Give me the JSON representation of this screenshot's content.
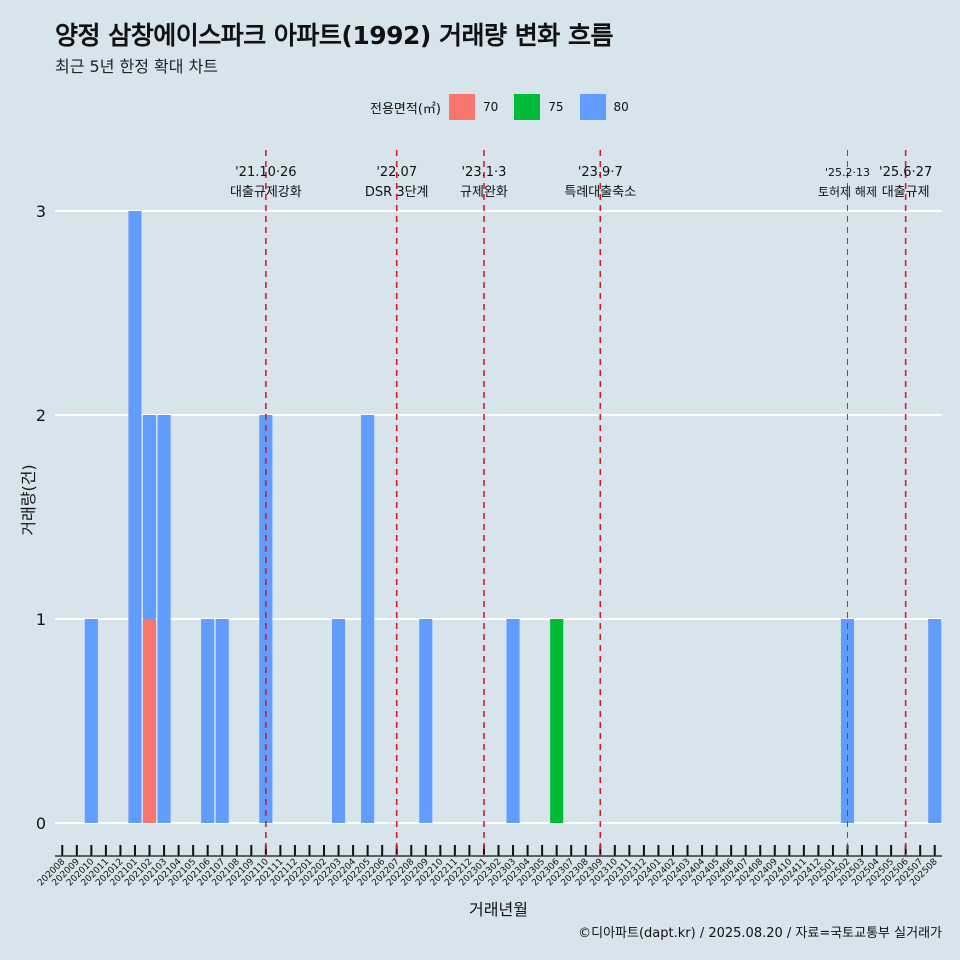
{
  "title": "양정 삼창에이스파크 아파트(1992) 거래량 변화 흐름",
  "subtitle": "최근 5년 한정 확대 차트",
  "caption": "©디아파트(dapt.kr) / 2025.08.20 / 자료=국토교통부 실거래가",
  "legend": {
    "title": "전용면적(㎡)",
    "items": [
      {
        "label": "70",
        "color": "#f8766d"
      },
      {
        "label": "75",
        "color": "#00ba38"
      },
      {
        "label": "80",
        "color": "#619cff"
      }
    ]
  },
  "chart_data": {
    "type": "bar",
    "xlabel": "거래년월",
    "ylabel": "거래량(건)",
    "ylim": [
      0,
      3
    ],
    "yticks": [
      0,
      1,
      2,
      3
    ],
    "grid": "horizontal",
    "legend_position": "top",
    "categories": [
      "202008",
      "202009",
      "202010",
      "202011",
      "202012",
      "202101",
      "202102",
      "202103",
      "202104",
      "202105",
      "202106",
      "202107",
      "202108",
      "202109",
      "202110",
      "202111",
      "202112",
      "202201",
      "202202",
      "202203",
      "202204",
      "202205",
      "202206",
      "202207",
      "202208",
      "202209",
      "202210",
      "202211",
      "202212",
      "202301",
      "202302",
      "202303",
      "202304",
      "202305",
      "202306",
      "202307",
      "202308",
      "202309",
      "202310",
      "202311",
      "202312",
      "202401",
      "202402",
      "202403",
      "202404",
      "202405",
      "202406",
      "202407",
      "202408",
      "202409",
      "202410",
      "202411",
      "202412",
      "202501",
      "202502",
      "202503",
      "202504",
      "202505",
      "202506",
      "202507",
      "202508"
    ],
    "series": [
      {
        "name": "70",
        "color": "#f8766d",
        "values": [
          0,
          0,
          0,
          0,
          0,
          0,
          1,
          0,
          0,
          0,
          0,
          0,
          0,
          0,
          0,
          0,
          0,
          0,
          0,
          0,
          0,
          0,
          0,
          0,
          0,
          0,
          0,
          0,
          0,
          0,
          0,
          0,
          0,
          0,
          0,
          0,
          0,
          0,
          0,
          0,
          0,
          0,
          0,
          0,
          0,
          0,
          0,
          0,
          0,
          0,
          0,
          0,
          0,
          0,
          0,
          0,
          0,
          0,
          0,
          0,
          0
        ]
      },
      {
        "name": "75",
        "color": "#00ba38",
        "values": [
          0,
          0,
          0,
          0,
          0,
          0,
          0,
          0,
          0,
          0,
          0,
          0,
          0,
          0,
          0,
          0,
          0,
          0,
          0,
          0,
          0,
          0,
          0,
          0,
          0,
          0,
          0,
          0,
          0,
          0,
          0,
          0,
          0,
          0,
          1,
          0,
          0,
          0,
          0,
          0,
          0,
          0,
          0,
          0,
          0,
          0,
          0,
          0,
          0,
          0,
          0,
          0,
          0,
          0,
          0,
          0,
          0,
          0,
          0,
          0,
          0
        ]
      },
      {
        "name": "80",
        "color": "#619cff",
        "values": [
          0,
          0,
          1,
          0,
          0,
          3,
          1,
          2,
          0,
          0,
          1,
          1,
          0,
          0,
          2,
          0,
          0,
          0,
          0,
          1,
          0,
          2,
          0,
          0,
          0,
          1,
          0,
          0,
          0,
          0,
          0,
          1,
          0,
          0,
          0,
          0,
          0,
          0,
          0,
          0,
          0,
          0,
          0,
          0,
          0,
          0,
          0,
          0,
          0,
          0,
          0,
          0,
          0,
          0,
          1,
          0,
          0,
          0,
          0,
          0,
          1
        ]
      }
    ],
    "annotations": [
      {
        "x": "202110",
        "date": "'21.10·26",
        "text": "대출규제강화"
      },
      {
        "x": "202207",
        "date": "'22.07",
        "text": "DSR 3단계"
      },
      {
        "x": "202301",
        "date": "'23.1·3",
        "text": "규제완화"
      },
      {
        "x": "202309",
        "date": "'23.9·7",
        "text": "특례대출축소"
      },
      {
        "x": "202502",
        "date": "'25.2·13",
        "text": "토허제 해제"
      },
      {
        "x": "202506",
        "date": "'25.6·27",
        "text": "대출규제"
      }
    ],
    "annotation_color": "#e31a1c"
  }
}
